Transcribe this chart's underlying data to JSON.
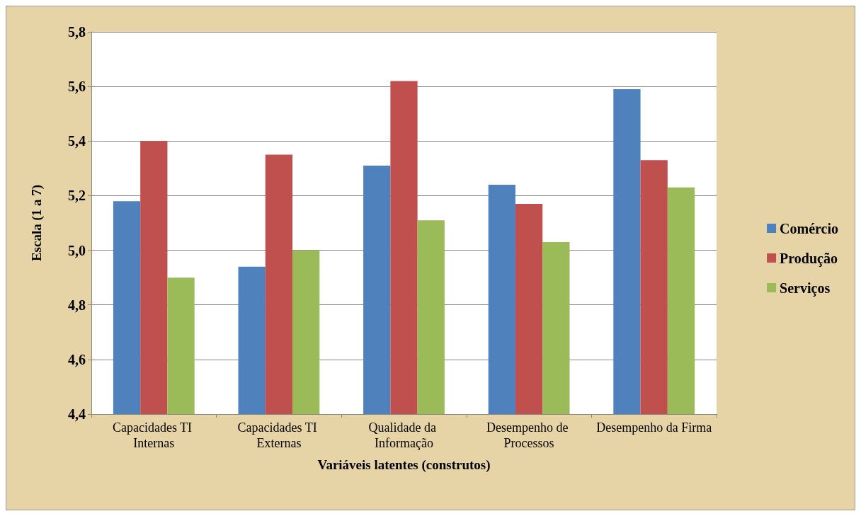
{
  "chart_data": {
    "type": "bar",
    "xlabel": "Variáveis latentes (construtos)",
    "ylabel": "Escala (1 a 7)",
    "categories": [
      "Capacidades TI Internas",
      "Capacidades TI Externas",
      "Qualidade da Informação",
      "Desempenho de Processos",
      "Desempenho da Firma"
    ],
    "series": [
      {
        "name": "Comércio",
        "color": "#4f81bd",
        "values": [
          5.18,
          4.94,
          5.31,
          5.24,
          5.59
        ]
      },
      {
        "name": "Produção",
        "color": "#c0504d",
        "values": [
          5.4,
          5.35,
          5.62,
          5.17,
          5.33
        ]
      },
      {
        "name": "Serviços",
        "color": "#9bbb59",
        "values": [
          4.9,
          5.0,
          5.11,
          5.03,
          5.23
        ]
      }
    ],
    "ylim": [
      4.4,
      5.8
    ],
    "yticks": [
      {
        "value": 4.4,
        "label": "4,4"
      },
      {
        "value": 4.6,
        "label": "4,6"
      },
      {
        "value": 4.8,
        "label": "4,8"
      },
      {
        "value": 5.0,
        "label": "5,0"
      },
      {
        "value": 5.2,
        "label": "5,2"
      },
      {
        "value": 5.4,
        "label": "5,4"
      },
      {
        "value": 5.6,
        "label": "5,6"
      },
      {
        "value": 5.8,
        "label": "5,8"
      }
    ],
    "grid": "y",
    "legend": "right"
  }
}
